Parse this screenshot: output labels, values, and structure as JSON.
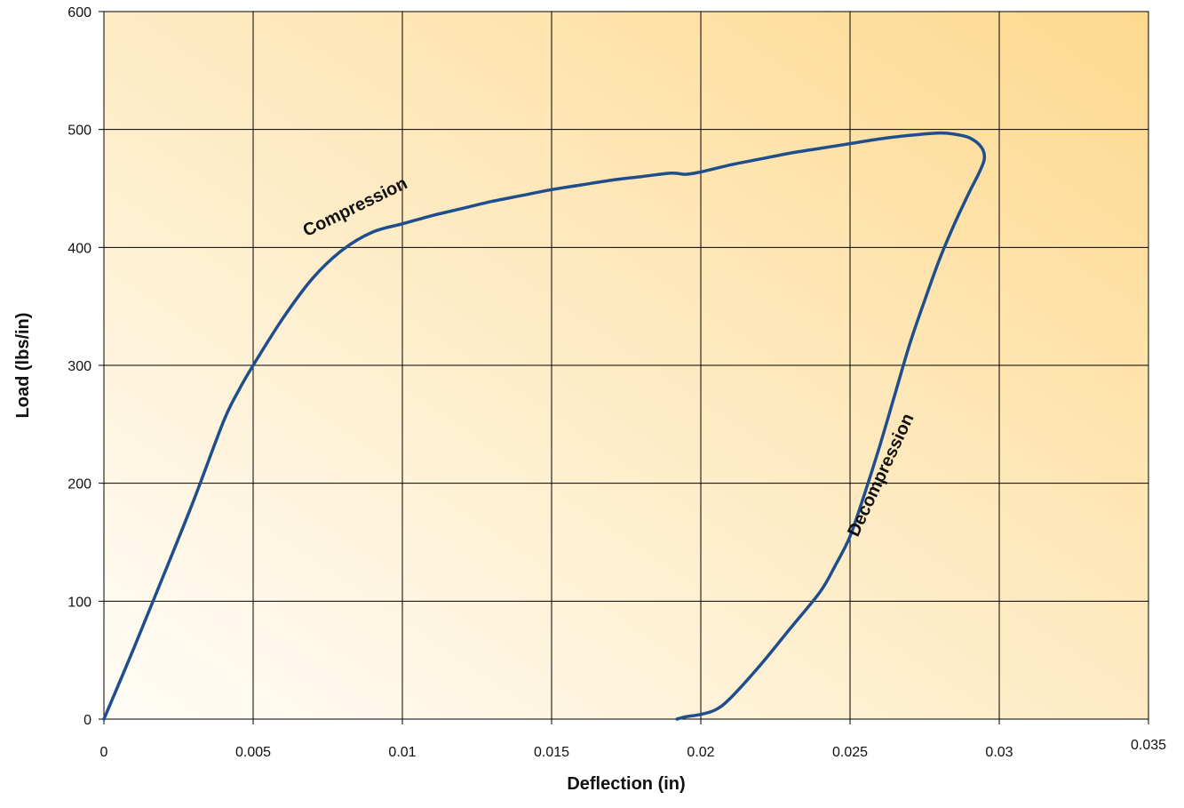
{
  "chart_data": {
    "type": "line",
    "title": "",
    "xlabel": "Deflection (in)",
    "ylabel": "Load (lbs/in)",
    "xlim": [
      0,
      0.035
    ],
    "ylim": [
      0,
      600
    ],
    "x_ticks": [
      "0",
      "0.005",
      "0.01",
      "0.015",
      "0.02",
      "0.025",
      "0.03",
      "0.035"
    ],
    "y_ticks": [
      "0",
      "100",
      "200",
      "300",
      "400",
      "500",
      "600"
    ],
    "grid": true,
    "line_color": "#1f4e8c",
    "background_gradient": [
      "#fffdf8",
      "#fdd98f"
    ],
    "series": [
      {
        "points": [
          [
            0,
            0
          ],
          [
            0.001,
            60
          ],
          [
            0.002,
            122
          ],
          [
            0.003,
            185
          ],
          [
            0.004,
            252
          ],
          [
            0.0045,
            278
          ],
          [
            0.005,
            300
          ],
          [
            0.006,
            340
          ],
          [
            0.007,
            374
          ],
          [
            0.008,
            398
          ],
          [
            0.009,
            413
          ],
          [
            0.01,
            420
          ],
          [
            0.011,
            427
          ],
          [
            0.012,
            433
          ],
          [
            0.013,
            439
          ],
          [
            0.014,
            444
          ],
          [
            0.015,
            449
          ],
          [
            0.016,
            453
          ],
          [
            0.017,
            457
          ],
          [
            0.018,
            460
          ],
          [
            0.019,
            463
          ],
          [
            0.0195,
            462
          ],
          [
            0.02,
            464
          ],
          [
            0.021,
            470
          ],
          [
            0.022,
            475
          ],
          [
            0.023,
            480
          ],
          [
            0.024,
            484
          ],
          [
            0.025,
            488
          ],
          [
            0.026,
            492
          ],
          [
            0.027,
            495
          ],
          [
            0.028,
            497
          ],
          [
            0.0285,
            496
          ],
          [
            0.029,
            493
          ],
          [
            0.0294,
            485
          ],
          [
            0.0295,
            475
          ],
          [
            0.0293,
            462
          ],
          [
            0.029,
            447
          ],
          [
            0.0285,
            420
          ],
          [
            0.028,
            390
          ],
          [
            0.0275,
            355
          ],
          [
            0.027,
            318
          ],
          [
            0.0265,
            275
          ],
          [
            0.026,
            232
          ],
          [
            0.0255,
            192
          ],
          [
            0.025,
            155
          ],
          [
            0.0245,
            130
          ],
          [
            0.024,
            108
          ],
          [
            0.023,
            77
          ],
          [
            0.022,
            46
          ],
          [
            0.021,
            18
          ],
          [
            0.0205,
            8
          ],
          [
            0.02,
            4
          ],
          [
            0.0195,
            2
          ],
          [
            0.0192,
            0
          ]
        ]
      }
    ],
    "annotations": [
      {
        "text": "Compression",
        "x": 0.0085,
        "y": 430,
        "rotate": -26
      },
      {
        "text": "Decompression",
        "x": 0.0262,
        "y": 205,
        "rotate": -65
      }
    ]
  }
}
